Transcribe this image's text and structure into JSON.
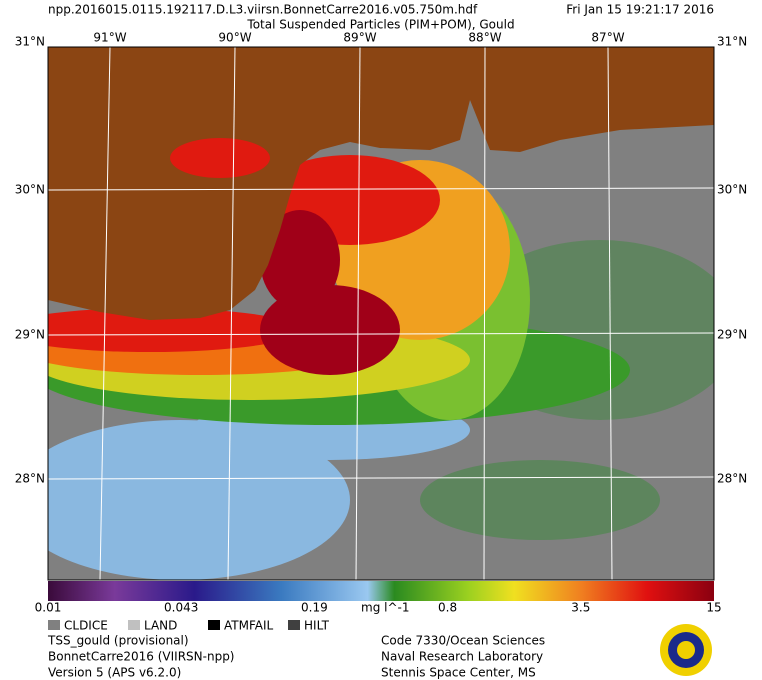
{
  "header": {
    "filename": "npp.2016015.0115.192117.D.L3.viirsn.BonnetCarre2016.v05.750m.hdf",
    "datetime": "Fri Jan 15 19:21:17 2016",
    "title": "Total Suspended Particles (PIM+POM), Gould"
  },
  "map": {
    "lon_labels": [
      "91°W",
      "90°W",
      "89°W",
      "88°W",
      "87°W"
    ],
    "lat_labels": [
      "31°N",
      "30°N",
      "29°N",
      "28°N"
    ]
  },
  "colorbar": {
    "ticks": [
      "0.01",
      "0.043",
      "0.19",
      "0.8",
      "3.5",
      "15"
    ],
    "unit": "mg l^-1"
  },
  "legend": [
    "CLDICE",
    "LAND",
    "ATMFAIL",
    "HILT"
  ],
  "footer": {
    "left": [
      "TSS_gould (provisional)",
      "BonnetCarre2016 (VIIRSN-npp)",
      "Version 5 (APS v6.2.0)"
    ],
    "right": [
      "Code 7330/Ocean Sciences",
      "Naval Research Laboratory",
      "Stennis Space Center, MS"
    ]
  }
}
